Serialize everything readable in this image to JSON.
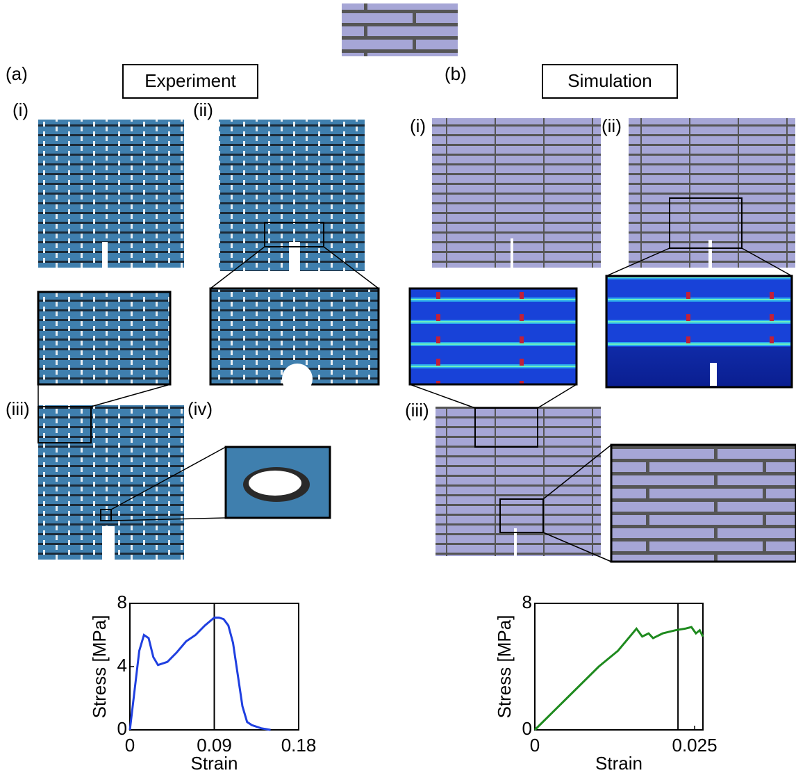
{
  "labels": {
    "a": "(a)",
    "b": "(b)",
    "experiment": "Experiment",
    "simulation": "Simulation",
    "a_panels": [
      "(i)",
      "(ii)",
      "(iii)",
      "(iv)"
    ],
    "b_panels": [
      "(i)",
      "(ii)",
      "(iii)"
    ]
  },
  "chart_data": [
    {
      "type": "line",
      "xlabel": "Strain",
      "ylabel": "Stress [MPa]",
      "x": [
        0,
        0.005,
        0.01,
        0.015,
        0.02,
        0.025,
        0.03,
        0.04,
        0.05,
        0.06,
        0.07,
        0.08,
        0.09,
        0.095,
        0.1,
        0.105,
        0.11,
        0.115,
        0.12,
        0.125,
        0.13,
        0.14,
        0.15
      ],
      "values": [
        0,
        2.5,
        5,
        6,
        5.8,
        4.6,
        4.1,
        4.3,
        4.9,
        5.6,
        6.0,
        6.6,
        7.1,
        7.1,
        7.0,
        6.6,
        5.5,
        3.5,
        1.5,
        0.5,
        0.3,
        0.1,
        0
      ],
      "color": "#1f3fe0",
      "marker_x": 0.09,
      "xlim": [
        0,
        0.18
      ],
      "xticks": [
        0,
        0.09,
        0.18
      ],
      "ylim": [
        0,
        8
      ],
      "yticks": [
        0,
        4,
        8
      ]
    },
    {
      "type": "line",
      "xlabel": "Strain",
      "ylabel": "Stress [MPa]",
      "x": [
        0,
        0.005,
        0.01,
        0.013,
        0.0159,
        0.0168,
        0.0178,
        0.0185,
        0.02,
        0.022,
        0.0235,
        0.0245,
        0.0252,
        0.0258,
        0.0263
      ],
      "values": [
        0,
        2.0,
        4.0,
        5.0,
        6.4,
        5.9,
        6.1,
        5.8,
        6.1,
        6.3,
        6.4,
        6.5,
        6.1,
        6.3,
        5.9
      ],
      "color": "#1e8a1e",
      "marker_x": 0.0224,
      "xlim": [
        0,
        0.0263
      ],
      "xticks": [
        0,
        0.025
      ],
      "ylim": [
        0,
        8
      ],
      "yticks": [
        0,
        8
      ]
    }
  ]
}
